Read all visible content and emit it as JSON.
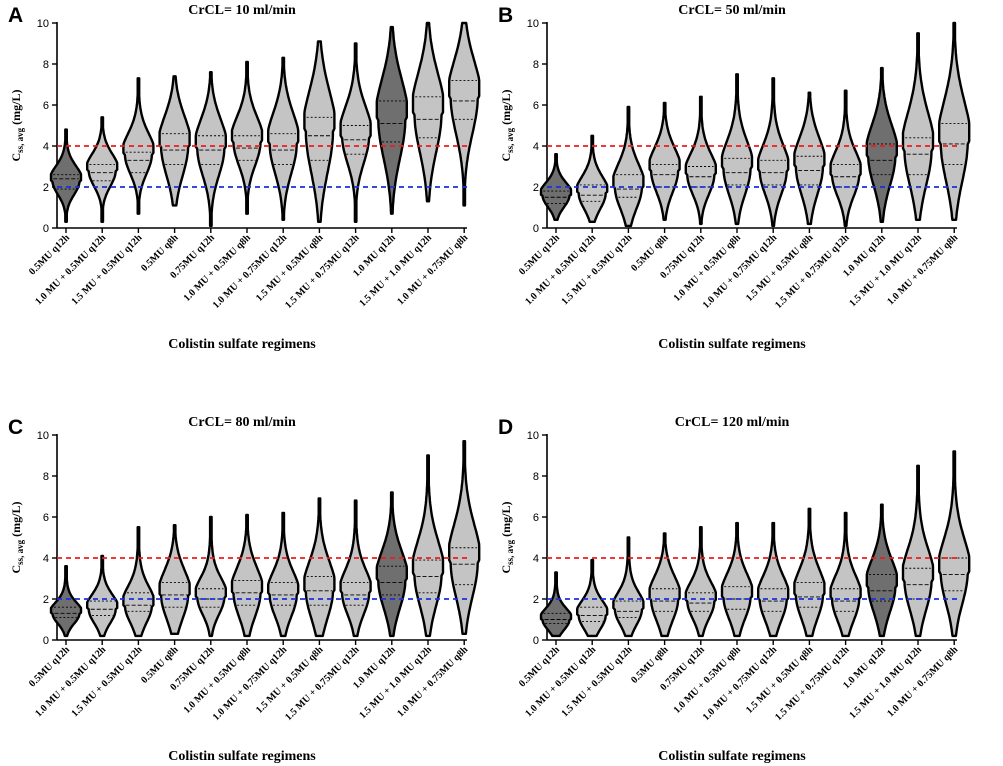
{
  "figure": {
    "ylabel_main": "C",
    "ylabel_sub": "ss, avg",
    "ylabel_unit": " (mg/L)",
    "colors": {
      "dark_fill": "#6f6f6f",
      "light_fill": "#c4c4c4",
      "outline": "#000000",
      "upper_line": "#ee1c1c",
      "lower_line": "#1c2fe0"
    }
  },
  "chart_data": [
    {
      "panel": "A",
      "type": "violin",
      "title": "CrCL= 10 ml/min",
      "xlabel": "Colistin sulfate regimens",
      "ylabel": "Css, avg (mg/L)",
      "ylim": [
        0,
        10
      ],
      "yticks": [
        0,
        2,
        4,
        6,
        8,
        10
      ],
      "reference_lines": [
        {
          "y": 4,
          "color": "red",
          "style": "dashed"
        },
        {
          "y": 2,
          "color": "blue",
          "style": "dashed"
        }
      ],
      "categories": [
        "0.5MU q12h",
        "1.0 MU + 0.5MU q12h",
        "1.5 MU + 0.5MU q12h",
        "0.5MU q8h",
        "0.75MU q12h",
        "1.0 MU + 0.5MU q8h",
        "1.0 MU + 0.75MU q12h",
        "1.5 MU + 0.5MU q8h",
        "1.5 MU + 0.75MU q12h",
        "1.0 MU q12h",
        "1.5 MU + 1.0 MU q12h",
        "1.0 MU + 0.75MU q8h"
      ],
      "shade": [
        "dark",
        "light",
        "light",
        "light",
        "light",
        "light",
        "light",
        "light",
        "light",
        "dark",
        "light",
        "light"
      ],
      "min": [
        0.3,
        0.3,
        0.7,
        1.1,
        0.1,
        0.7,
        0.4,
        0.3,
        0.3,
        0.7,
        1.3,
        1.1
      ],
      "q1": [
        1.9,
        2.3,
        2.7,
        3.1,
        3.1,
        3.3,
        3.1,
        3.3,
        3.6,
        4.2,
        4.4,
        5.3
      ],
      "median": [
        2.4,
        2.7,
        3.3,
        3.8,
        3.8,
        3.9,
        3.8,
        4.5,
        4.3,
        5.1,
        5.3,
        6.2
      ],
      "q3": [
        2.6,
        3.1,
        3.7,
        4.6,
        4.5,
        4.5,
        4.6,
        5.4,
        5.0,
        6.2,
        6.4,
        7.2
      ],
      "max": [
        4.8,
        5.4,
        7.3,
        7.4,
        7.6,
        8.1,
        8.3,
        9.1,
        9.0,
        9.8,
        10.0,
        10.0
      ],
      "peak": [
        2.3,
        2.8,
        3.6,
        4.0,
        3.9,
        4.2,
        4.1,
        4.7,
        4.5,
        5.3,
        5.6,
        6.4
      ]
    },
    {
      "panel": "B",
      "type": "violin",
      "title": "CrCL= 50 ml/min",
      "xlabel": "Colistin sulfate regimens",
      "ylabel": "Css, avg (mg/L)",
      "ylim": [
        0,
        10
      ],
      "yticks": [
        0,
        2,
        4,
        6,
        8,
        10
      ],
      "reference_lines": [
        {
          "y": 4,
          "color": "red",
          "style": "dashed"
        },
        {
          "y": 2,
          "color": "blue",
          "style": "dashed"
        }
      ],
      "categories": [
        "0.5MU q12h",
        "1.0 MU + 0.5MU q12h",
        "1.5 MU + 0.5MU q12h",
        "0.5MU q8h",
        "0.75MU q12h",
        "1.0 MU + 0.5MU q8h",
        "1.0 MU + 0.75MU q12h",
        "1.5 MU + 0.5MU q8h",
        "1.5 MU + 0.75MU q12h",
        "1.0 MU q12h",
        "1.5 MU + 1.0 MU q12h",
        "1.0 MU + 0.75MU q8h"
      ],
      "shade": [
        "dark",
        "light",
        "light",
        "light",
        "light",
        "light",
        "light",
        "light",
        "light",
        "dark",
        "light",
        "light"
      ],
      "min": [
        0.4,
        0.3,
        0.1,
        0.4,
        0.2,
        0.2,
        0.1,
        0.2,
        0.1,
        0.3,
        0.4,
        0.4
      ],
      "q1": [
        1.2,
        1.3,
        1.5,
        2.0,
        2.0,
        2.1,
        2.1,
        2.1,
        2.0,
        2.6,
        2.6,
        3.1
      ],
      "median": [
        1.5,
        1.6,
        1.9,
        2.6,
        2.5,
        2.7,
        2.7,
        2.8,
        2.5,
        3.3,
        3.6,
        4.1
      ],
      "q3": [
        1.8,
        2.1,
        2.6,
        3.1,
        3.0,
        3.4,
        3.3,
        3.5,
        3.1,
        4.1,
        4.4,
        5.1
      ],
      "max": [
        3.6,
        4.5,
        5.9,
        6.1,
        6.4,
        7.5,
        7.3,
        6.6,
        6.7,
        7.8,
        9.5,
        10.0
      ],
      "peak": [
        1.6,
        1.7,
        2.0,
        2.8,
        2.6,
        2.9,
        2.8,
        3.0,
        2.6,
        3.5,
        3.8,
        4.2
      ]
    },
    {
      "panel": "C",
      "type": "violin",
      "title": "CrCL= 80 ml/min",
      "xlabel": "Colistin sulfate regimens",
      "ylabel": "Css, avg (mg/L)",
      "ylim": [
        0,
        10
      ],
      "yticks": [
        0,
        2,
        4,
        6,
        8,
        10
      ],
      "reference_lines": [
        {
          "y": 4,
          "color": "red",
          "style": "dashed"
        },
        {
          "y": 2,
          "color": "blue",
          "style": "dashed"
        }
      ],
      "categories": [
        "0.5MU q12h",
        "1.0 MU + 0.5MU q12h",
        "1.5 MU + 0.5MU q12h",
        "0.5MU q8h",
        "0.75MU q12h",
        "1.0 MU + 0.5MU q8h",
        "1.0 MU + 0.75MU q12h",
        "1.5 MU + 0.5MU q8h",
        "1.5 MU + 0.75MU q12h",
        "1.0 MU q12h",
        "1.5 MU + 1.0 MU q12h",
        "1.0 MU + 0.75MU q8h"
      ],
      "shade": [
        "dark",
        "light",
        "light",
        "light",
        "light",
        "light",
        "light",
        "light",
        "light",
        "dark",
        "light",
        "light"
      ],
      "min": [
        0.2,
        0.2,
        0.2,
        0.3,
        0.2,
        0.2,
        0.2,
        0.2,
        0.2,
        0.2,
        0.2,
        0.3
      ],
      "q1": [
        1.1,
        1.2,
        1.4,
        1.6,
        1.6,
        1.7,
        1.7,
        1.7,
        1.7,
        2.2,
        2.3,
        2.7
      ],
      "median": [
        1.3,
        1.5,
        1.7,
        2.2,
        2.0,
        2.3,
        2.2,
        2.4,
        2.2,
        2.8,
        3.1,
        3.7
      ],
      "q3": [
        1.6,
        1.9,
        2.3,
        2.8,
        2.5,
        2.9,
        2.8,
        3.1,
        2.8,
        3.6,
        3.9,
        4.5
      ],
      "max": [
        3.6,
        4.1,
        5.5,
        5.6,
        6.0,
        6.1,
        6.2,
        6.9,
        6.8,
        7.2,
        9.0,
        9.7
      ],
      "peak": [
        1.3,
        1.5,
        1.7,
        2.2,
        2.1,
        2.3,
        2.2,
        2.4,
        2.3,
        2.9,
        3.2,
        3.8
      ]
    },
    {
      "panel": "D",
      "type": "violin",
      "title": "CrCL= 120 ml/min",
      "xlabel": "Colistin sulfate regimens",
      "ylabel": "Css, avg (mg/L)",
      "ylim": [
        0,
        10
      ],
      "yticks": [
        0,
        2,
        4,
        6,
        8,
        10
      ],
      "reference_lines": [
        {
          "y": 4,
          "color": "red",
          "style": "dashed"
        },
        {
          "y": 2,
          "color": "blue",
          "style": "dashed"
        }
      ],
      "categories": [
        "0.5MU q12h",
        "1.0 MU + 0.5MU q12h",
        "1.5 MU + 0.5MU q12h",
        "0.5MU q8h",
        "0.75MU q12h",
        "1.0 MU + 0.5MU q8h",
        "1.0 MU + 0.75MU q12h",
        "1.5 MU + 0.5MU q8h",
        "1.5 MU + 0.75MU q12h",
        "1.0 MU q12h",
        "1.5 MU + 1.0 MU q12h",
        "1.0 MU + 0.75MU q8h"
      ],
      "shade": [
        "dark",
        "light",
        "light",
        "light",
        "light",
        "light",
        "light",
        "light",
        "light",
        "dark",
        "light",
        "light"
      ],
      "min": [
        0.2,
        0.2,
        0.2,
        0.2,
        0.2,
        0.2,
        0.2,
        0.2,
        0.2,
        0.2,
        0.2,
        0.2
      ],
      "q1": [
        0.8,
        0.9,
        1.1,
        1.4,
        1.4,
        1.5,
        1.4,
        1.6,
        1.4,
        1.9,
        2.0,
        2.4
      ],
      "median": [
        1.0,
        1.2,
        1.4,
        1.9,
        1.8,
        2.0,
        1.9,
        2.1,
        1.9,
        2.4,
        2.7,
        3.2
      ],
      "q3": [
        1.3,
        1.6,
        1.9,
        2.5,
        2.3,
        2.6,
        2.5,
        2.8,
        2.5,
        3.2,
        3.5,
        4.0
      ],
      "max": [
        3.3,
        3.9,
        5.0,
        5.2,
        5.5,
        5.7,
        5.7,
        6.4,
        6.2,
        6.6,
        8.5,
        9.2
      ],
      "peak": [
        1.0,
        1.2,
        1.5,
        2.0,
        1.9,
        2.1,
        2.0,
        2.2,
        2.0,
        2.6,
        2.9,
        3.3
      ]
    }
  ]
}
